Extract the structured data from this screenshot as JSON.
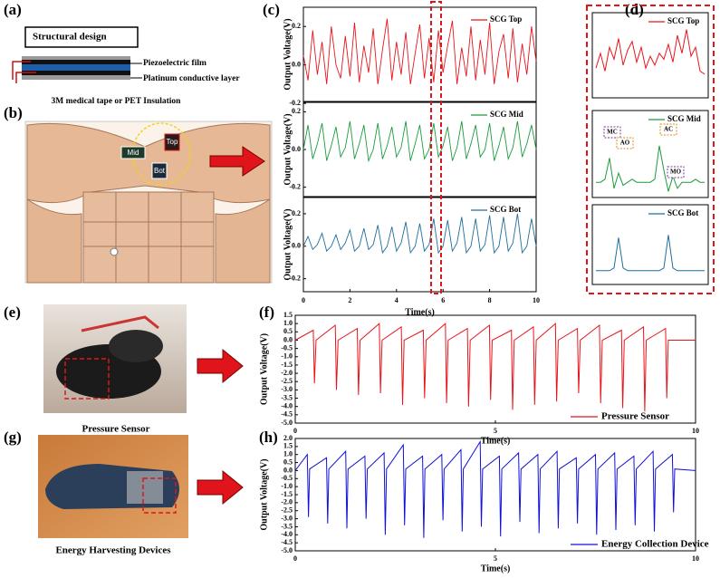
{
  "panel_labels": [
    "(a)",
    "(b)",
    "(c)",
    "(d)",
    "(e)",
    "(f)",
    "(g)",
    "(h)"
  ],
  "structure": {
    "title": "Structural design",
    "layers": [
      "Piezoelectric film",
      "Platinum conductive layer",
      "3M medical tape or PET Insulation"
    ]
  },
  "body_labels": [
    "Mid",
    "Top",
    "Bot"
  ],
  "captions": [
    "Pressure Sensor",
    "Energy Harvesting Devices"
  ],
  "chart_data": [
    {
      "type": "line",
      "x_label": "Time(s)",
      "xlim": [
        0,
        10
      ],
      "xticks": [
        0,
        2,
        4,
        6,
        8,
        10
      ],
      "x": [
        0,
        0.2,
        0.4,
        0.6,
        0.8,
        1,
        1.2,
        1.4,
        1.6,
        1.8,
        2,
        2.2,
        2.4,
        2.6,
        2.8,
        3,
        3.2,
        3.4,
        3.6,
        3.8,
        4,
        4.2,
        4.4,
        4.6,
        4.8,
        5,
        5.2,
        5.4,
        5.6,
        5.8,
        6,
        6.2,
        6.4,
        6.6,
        6.8,
        7,
        7.2,
        7.4,
        7.6,
        7.8,
        8,
        8.2,
        8.4,
        8.6,
        8.8,
        9,
        9.2,
        9.4,
        9.6,
        9.8,
        10
      ],
      "series": [
        {
          "name": "SCG Top",
          "color": "#e8141b",
          "y_label": "Output Voltage(V)",
          "ylim": [
            -0.19,
            0.3
          ],
          "yticks": [
            0.2,
            {
              "value": 0,
              "label": "0.0"
            },
            -0.2
          ],
          "values": [
            0.05,
            -0.08,
            0.18,
            -0.05,
            0.12,
            -0.1,
            0.2,
            0.0,
            -0.07,
            0.15,
            -0.06,
            0.22,
            -0.09,
            0.1,
            -0.04,
            0.19,
            -0.1,
            0.08,
            0.24,
            -0.08,
            0.12,
            -0.05,
            0.17,
            -0.1,
            0.06,
            0.21,
            -0.07,
            0.14,
            -0.09,
            0.18,
            -0.04,
            0.1,
            0.23,
            -0.1,
            0.09,
            -0.06,
            0.2,
            -0.08,
            0.13,
            -0.05,
            0.22,
            -0.1,
            0.07,
            0.16,
            -0.07,
            0.19,
            -0.09,
            0.11,
            -0.05,
            0.2,
            0.02
          ]
        },
        {
          "name": "SCG Mid",
          "color": "#1a9b3c",
          "y_label": "Output Voltage(V)",
          "ylim": [
            -0.25,
            0.25
          ],
          "yticks": [
            0.2,
            {
              "value": 0,
              "label": "0.0"
            },
            -0.2
          ],
          "values": [
            0.0,
            0.13,
            -0.05,
            0.03,
            0.14,
            -0.06,
            0.02,
            0.12,
            -0.04,
            0.01,
            0.15,
            -0.05,
            0.03,
            0.13,
            -0.06,
            0.0,
            0.14,
            -0.05,
            0.02,
            0.12,
            -0.04,
            0.01,
            0.15,
            -0.06,
            0.03,
            0.13,
            -0.05,
            0.0,
            0.14,
            -0.04,
            0.02,
            0.12,
            -0.06,
            0.01,
            0.15,
            -0.05,
            0.03,
            0.13,
            -0.04,
            0.0,
            0.14,
            -0.06,
            0.02,
            0.12,
            -0.05,
            0.01,
            0.15,
            -0.04,
            0.03,
            0.13,
            0.0
          ]
        },
        {
          "name": "SCG Bot",
          "color": "#1f6e99",
          "y_label": "Output Voltage(V)",
          "ylim": [
            -0.28,
            0.3
          ],
          "yticks": [
            0.2,
            {
              "value": 0,
              "label": "0.0"
            },
            -0.2
          ],
          "values": [
            0.0,
            0.06,
            -0.02,
            0.01,
            0.08,
            -0.03,
            0.0,
            0.07,
            -0.02,
            0.02,
            0.1,
            -0.03,
            0.0,
            0.11,
            -0.02,
            0.01,
            0.13,
            -0.04,
            0.0,
            0.12,
            -0.03,
            0.02,
            0.15,
            -0.04,
            0.0,
            0.14,
            -0.03,
            0.01,
            0.17,
            -0.04,
            0.0,
            0.16,
            -0.03,
            0.02,
            0.18,
            -0.04,
            0.0,
            0.17,
            -0.03,
            0.01,
            0.19,
            -0.04,
            0.0,
            0.18,
            -0.03,
            0.02,
            0.2,
            -0.04,
            0.0,
            0.17,
            0.0
          ]
        }
      ]
    },
    {
      "type": "line",
      "ylim": [
        -0.05,
        0.2
      ],
      "series": [
        {
          "name": "SCG Top",
          "color": "#e8141b",
          "values": [
            0.05,
            0.1,
            0.04,
            0.12,
            0.08,
            0.15,
            0.06,
            0.11,
            0.14,
            0.07,
            0.12,
            0.05,
            0.09,
            0.06,
            0.1,
            0.08,
            0.13,
            0.07,
            0.16,
            0.1,
            0.18,
            0.09,
            0.12,
            0.04,
            0.03
          ]
        },
        {
          "name": "SCG Mid",
          "color": "#1a9b3c",
          "annotations": [
            "MC",
            "AO",
            "AC",
            "MO"
          ],
          "values": [
            0.0,
            0.0,
            0.01,
            0.08,
            -0.02,
            0.03,
            -0.01,
            0.0,
            0.01,
            0.0,
            0.0,
            0.0,
            0.0,
            0.01,
            0.12,
            0.04,
            -0.03,
            0.02,
            -0.02,
            0.0,
            0.0,
            0.0,
            0.01,
            0.0,
            0.0
          ]
        },
        {
          "name": "SCG Bot",
          "color": "#1f6e99",
          "values": [
            0.0,
            0.0,
            0.0,
            0.0,
            0.01,
            0.12,
            0.01,
            0.0,
            0.0,
            0.0,
            0.0,
            0.0,
            0.0,
            0.0,
            0.0,
            0.01,
            0.13,
            0.01,
            0.0,
            0.0,
            0.0,
            0.0,
            0.0,
            0.0,
            0.0
          ]
        }
      ]
    },
    {
      "type": "line",
      "x_label": "Time(s)",
      "y_label": "Output Voltage(V)",
      "xlim": [
        0,
        10
      ],
      "xticks": [
        0,
        5,
        10
      ],
      "ylim": [
        -5,
        1.5
      ],
      "yticks": [
        1.5,
        {
          "value": 1,
          "label": "1.0"
        },
        0.5,
        {
          "value": 0,
          "label": "0.0"
        },
        -0.5,
        {
          "value": -1,
          "label": "-1.0"
        },
        -1.5,
        {
          "value": -2,
          "label": "-2.0"
        },
        -2.5,
        {
          "value": -3,
          "label": "-3.0"
        },
        -3.5,
        {
          "value": -4,
          "label": "-4.0"
        },
        -4.5,
        {
          "value": -5,
          "label": "-5.0"
        }
      ],
      "x": [
        0,
        0.45,
        0.48,
        0.52,
        1.0,
        1.03,
        1.07,
        1.55,
        1.58,
        1.62,
        2.1,
        2.13,
        2.17,
        2.65,
        2.68,
        2.72,
        3.2,
        3.23,
        3.27,
        3.75,
        3.78,
        3.82,
        4.3,
        4.33,
        4.37,
        4.85,
        4.88,
        4.92,
        5.4,
        5.43,
        5.47,
        5.95,
        5.98,
        6.02,
        6.5,
        6.53,
        6.57,
        7.05,
        7.08,
        7.12,
        7.6,
        7.63,
        7.67,
        8.15,
        8.18,
        8.22,
        8.7,
        8.73,
        8.77,
        9.25,
        9.28,
        9.32,
        10
      ],
      "series": [
        {
          "name": "Pressure Sensor",
          "color": "#e8141b",
          "values": [
            0,
            0.6,
            -2.6,
            0,
            0.9,
            -3.0,
            0,
            0.7,
            -3.3,
            0,
            1.0,
            -3.2,
            0,
            0.8,
            -3.9,
            0,
            0.6,
            -3.5,
            0,
            1.0,
            -3.8,
            0,
            0.7,
            -4.0,
            0,
            0.9,
            -3.6,
            0,
            0.6,
            -4.2,
            0,
            0.8,
            -3.9,
            0,
            1.0,
            -3.7,
            0,
            0.7,
            -3.2,
            0,
            0.9,
            -3.8,
            0,
            0.6,
            -4.1,
            0,
            0.8,
            -4.3,
            0,
            0.7,
            -3.5,
            0,
            0
          ]
        }
      ]
    },
    {
      "type": "line",
      "x_label": "Time(s)",
      "y_label": "Output Voltage(V)",
      "xlim": [
        0,
        10
      ],
      "xticks": [
        0,
        5,
        10
      ],
      "ylim": [
        -5,
        2
      ],
      "yticks": [
        {
          "value": 2,
          "label": "2.0"
        },
        1.5,
        {
          "value": 1,
          "label": "1.0"
        },
        0.5,
        {
          "value": 0,
          "label": "0.0"
        },
        -0.5,
        {
          "value": -1,
          "label": "-1.0"
        },
        -1.5,
        {
          "value": -2,
          "label": "-2.0"
        },
        -2.5,
        {
          "value": -3,
          "label": "-3.0"
        },
        -3.5,
        {
          "value": -4,
          "label": "-4.0"
        },
        -4.5,
        {
          "value": -5,
          "label": "-5.0"
        }
      ],
      "x": [
        0,
        0.3,
        0.33,
        0.36,
        0.78,
        0.81,
        0.84,
        1.26,
        1.29,
        1.32,
        1.74,
        1.77,
        1.8,
        2.22,
        2.25,
        2.28,
        2.7,
        2.73,
        2.76,
        3.18,
        3.21,
        3.24,
        3.66,
        3.69,
        3.72,
        4.14,
        4.17,
        4.2,
        4.62,
        4.65,
        4.68,
        5.1,
        5.13,
        5.16,
        5.58,
        5.61,
        5.64,
        6.06,
        6.09,
        6.12,
        6.54,
        6.57,
        6.6,
        7.02,
        7.05,
        7.08,
        7.5,
        7.53,
        7.56,
        7.98,
        8.01,
        8.04,
        8.46,
        8.49,
        8.52,
        8.94,
        8.97,
        9.0,
        9.42,
        9.45,
        9.48,
        10
      ],
      "series": [
        {
          "name": "Energy Collection Device",
          "color": "#1010d8",
          "values": [
            0,
            1.0,
            -2.9,
            0.1,
            0.8,
            -3.3,
            0.1,
            1.2,
            -3.6,
            0.1,
            0.9,
            -3.0,
            0.1,
            1.1,
            -4.0,
            0.1,
            1.6,
            -3.4,
            0.1,
            0.9,
            -4.2,
            0.1,
            1.0,
            -3.1,
            0.1,
            1.3,
            -3.8,
            0.1,
            1.8,
            -3.5,
            0.1,
            0.9,
            -4.1,
            0.1,
            1.1,
            -3.2,
            0.1,
            1.0,
            -3.9,
            0.1,
            1.2,
            -3.6,
            0.1,
            0.8,
            -3.3,
            0.1,
            1.0,
            -4.0,
            0.1,
            1.1,
            -3.7,
            0.1,
            0.9,
            -3.4,
            0.1,
            1.2,
            -3.8,
            0.1,
            1.0,
            -2.6,
            0.1,
            0
          ]
        }
      ]
    }
  ]
}
